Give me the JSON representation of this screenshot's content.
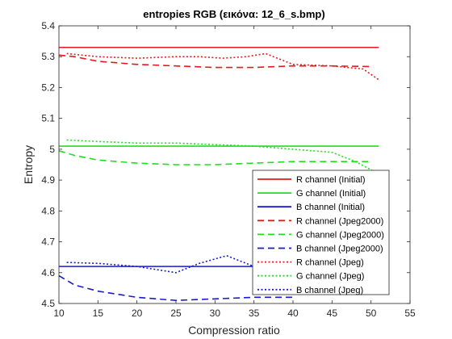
{
  "chart_data": {
    "type": "line",
    "title": "entropies RGB (εικόνα: 12_6_s.bmp)",
    "xlabel": "Compression ratio",
    "ylabel": "Entropy",
    "xlim": [
      10,
      55
    ],
    "ylim": [
      4.5,
      5.4
    ],
    "xticks": [
      "10",
      "15",
      "20",
      "25",
      "30",
      "35",
      "40",
      "45",
      "50",
      "55"
    ],
    "yticks": [
      "4.5",
      "4.6",
      "4.7",
      "4.8",
      "4.9",
      "5",
      "5.1",
      "5.2",
      "5.3",
      "5.4"
    ],
    "grid": false,
    "legend_position": "bottom-right",
    "series": [
      {
        "name": "R channel (Initial)",
        "color": "#e31a1c",
        "dash": "solid",
        "x": [
          10,
          51
        ],
        "y": [
          5.33,
          5.33
        ]
      },
      {
        "name": "G channel (Initial)",
        "color": "#22dd22",
        "dash": "solid",
        "x": [
          10,
          51
        ],
        "y": [
          5.01,
          5.01
        ]
      },
      {
        "name": "B channel (Initial)",
        "color": "#1a1acc",
        "dash": "solid",
        "x": [
          10,
          51
        ],
        "y": [
          4.62,
          4.62
        ]
      },
      {
        "name": "R channel (Jpeg2000)",
        "color": "#e31a1c",
        "dash": "dashed",
        "x": [
          10,
          12,
          15,
          20,
          25,
          30,
          35,
          40,
          45,
          50
        ],
        "y": [
          5.305,
          5.3,
          5.285,
          5.275,
          5.27,
          5.265,
          5.265,
          5.27,
          5.27,
          5.268
        ]
      },
      {
        "name": "G channel (Jpeg2000)",
        "color": "#22dd22",
        "dash": "dashed",
        "x": [
          10,
          12,
          15,
          20,
          25,
          30,
          35,
          40,
          45,
          48,
          50
        ],
        "y": [
          4.995,
          4.98,
          4.965,
          4.955,
          4.95,
          4.95,
          4.955,
          4.96,
          4.96,
          4.96,
          4.96
        ]
      },
      {
        "name": "B channel (Jpeg2000)",
        "color": "#1a1acc",
        "dash": "dashed",
        "x": [
          10,
          12,
          15,
          20,
          25,
          30,
          35,
          40
        ],
        "y": [
          4.59,
          4.56,
          4.54,
          4.52,
          4.51,
          4.515,
          4.52,
          4.52
        ]
      },
      {
        "name": "R channel (Jpeg)",
        "color": "#e31a1c",
        "dash": "dotted",
        "x": [
          11,
          15,
          20,
          25,
          28,
          31,
          34,
          36.5,
          40,
          45,
          49,
          51
        ],
        "y": [
          5.31,
          5.3,
          5.295,
          5.3,
          5.3,
          5.295,
          5.3,
          5.31,
          5.275,
          5.27,
          5.26,
          5.225
        ]
      },
      {
        "name": "G channel (Jpeg)",
        "color": "#22dd22",
        "dash": "dotted",
        "x": [
          11,
          15,
          20,
          25,
          30,
          35,
          40,
          45,
          48,
          49.5,
          51
        ],
        "y": [
          5.03,
          5.025,
          5.02,
          5.02,
          5.015,
          5.01,
          5.0,
          4.99,
          4.96,
          4.94,
          4.92
        ]
      },
      {
        "name": "B channel (Jpeg)",
        "color": "#1a1acc",
        "dash": "dotted",
        "x": [
          11,
          15,
          20,
          25,
          28,
          31.5,
          33,
          35
        ],
        "y": [
          4.633,
          4.63,
          4.62,
          4.6,
          4.63,
          4.655,
          4.64,
          4.62
        ]
      }
    ]
  }
}
